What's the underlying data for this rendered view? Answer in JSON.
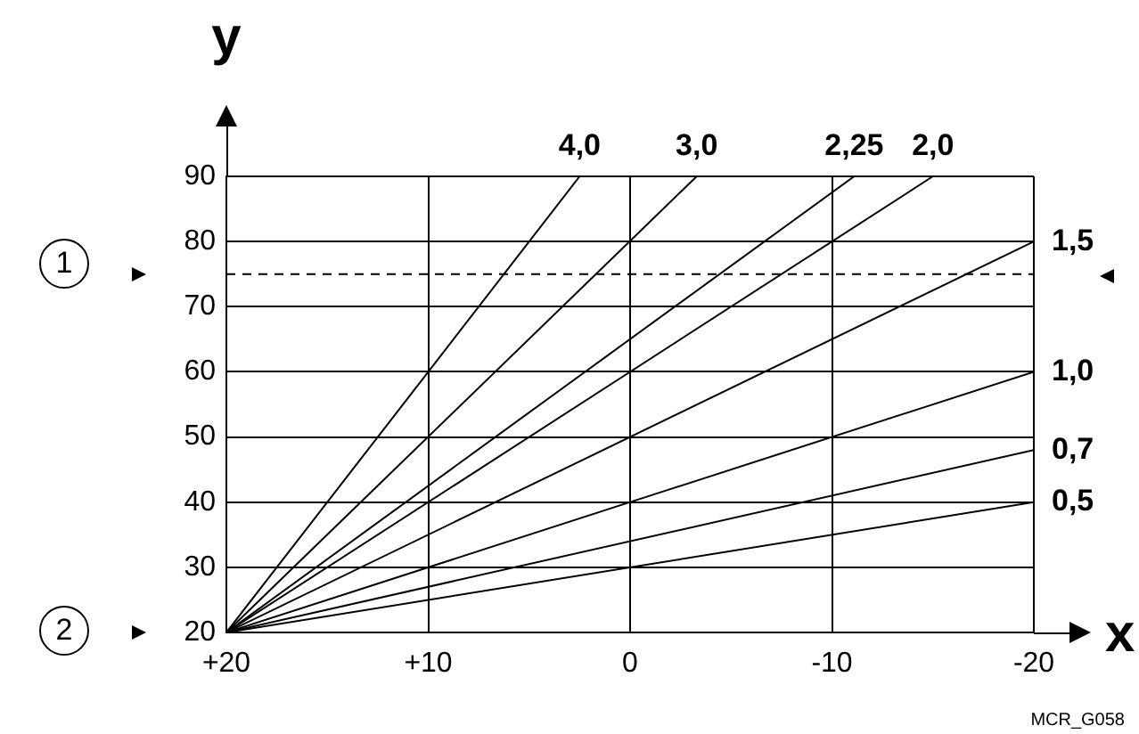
{
  "chart_data": {
    "type": "line",
    "xlabel": "x",
    "ylabel": "y",
    "xlim": [
      20,
      -20
    ],
    "xticks": [
      {
        "value": 20,
        "label": "+20"
      },
      {
        "value": 10,
        "label": "+10"
      },
      0,
      -10,
      -20
    ],
    "ylim": [
      20,
      90
    ],
    "yticks": [
      20,
      30,
      40,
      50,
      60,
      70,
      80,
      90
    ],
    "grid": true,
    "legend": false,
    "marker": "none",
    "line_style": "solid",
    "series": [
      {
        "name": "4,0",
        "color": "#000000",
        "x": [
          20,
          2.5
        ],
        "values": [
          20,
          90
        ]
      },
      {
        "name": "3,0",
        "color": "#000000",
        "x": [
          20,
          -3.3
        ],
        "values": [
          20,
          90
        ]
      },
      {
        "name": "2,25",
        "color": "#000000",
        "x": [
          20,
          -11.1
        ],
        "values": [
          20,
          90
        ]
      },
      {
        "name": "2,0",
        "color": "#000000",
        "x": [
          20,
          -15
        ],
        "values": [
          20,
          90
        ]
      },
      {
        "name": "1,5",
        "color": "#000000",
        "x": [
          20,
          -20
        ],
        "values": [
          20,
          80
        ]
      },
      {
        "name": "1,0",
        "color": "#000000",
        "x": [
          20,
          -20
        ],
        "values": [
          20,
          60
        ]
      },
      {
        "name": "0,7",
        "color": "#000000",
        "x": [
          20,
          -20
        ],
        "values": [
          20,
          48
        ]
      },
      {
        "name": "0,5",
        "color": "#000000",
        "x": [
          20,
          -20
        ],
        "values": [
          20,
          40
        ]
      }
    ],
    "ref_lines": [
      {
        "axis": "y",
        "value": 75,
        "line_style": "dashed",
        "color": "#000000"
      }
    ],
    "annotations": [
      "1",
      "2",
      "MCR_G058"
    ]
  }
}
